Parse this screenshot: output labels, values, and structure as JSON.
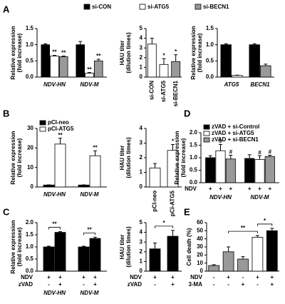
{
  "chart_data": [
    {
      "type": "bar",
      "panel": "A",
      "ylabel": [
        "Relative expression",
        "(fold increase)"
      ],
      "legend": "top",
      "italic_categories": true,
      "categories": [
        "NDV-HN",
        "NDV-M"
      ],
      "ylim": [
        0,
        1.5
      ],
      "yticks": [
        {
          "value": 0,
          "label": "0.0"
        },
        {
          "value": 0.5,
          "label": "0.5"
        },
        {
          "value": 1,
          "label": "1.0"
        },
        {
          "value": 1.5,
          "label": "1.5"
        }
      ],
      "series": [
        {
          "name": "si-CON",
          "color": "#000000",
          "values": [
            1.0,
            1.0
          ],
          "errors": [
            0.03,
            0.1
          ]
        },
        {
          "name": "si-ATG5",
          "color": "#ffffff",
          "values": [
            0.65,
            0.12
          ],
          "errors": [
            0.02,
            0.02
          ],
          "annotations": [
            "**",
            "**"
          ]
        },
        {
          "name": "si-BECN1",
          "color": "#999999",
          "values": [
            0.63,
            0.5
          ],
          "errors": [
            0.02,
            0.05
          ],
          "annotations": [
            "**",
            "**"
          ]
        }
      ]
    },
    {
      "type": "bar",
      "ylabel": [
        "HAU titer",
        "(dilution times)"
      ],
      "rotate_labels": true,
      "categories": [
        "si-CON",
        "si-ATG5",
        "si-BECN1"
      ],
      "ylim": [
        0,
        5
      ],
      "yticks": [
        0,
        1,
        2,
        3,
        4,
        5
      ],
      "series": [
        {
          "colors": [
            "#ffffff",
            "#ffffff",
            "#999999"
          ],
          "values": [
            3.4,
            1.3,
            1.6
          ],
          "errors": [
            0.6,
            0.6,
            0.7
          ],
          "annotations": [
            null,
            "*",
            "*"
          ]
        }
      ]
    },
    {
      "type": "bar",
      "ylabel": [
        "Relative expression",
        "(fold increase)"
      ],
      "italic_categories": true,
      "categories": [
        "ATG5",
        "BECN1"
      ],
      "ylim": [
        0,
        1.5
      ],
      "yticks": [
        {
          "value": 0,
          "label": "0.0"
        },
        {
          "value": 0.5,
          "label": "0.5"
        },
        {
          "value": 1,
          "label": "1.0"
        },
        {
          "value": 1.5,
          "label": "1.5"
        }
      ],
      "series": [
        {
          "color": "#000000",
          "values": [
            1.0,
            1.0
          ],
          "errors": [
            0.03,
            0.03
          ]
        },
        {
          "colors": [
            "#ffffff",
            "#999999"
          ],
          "values": [
            0.05,
            0.35
          ],
          "errors": [
            0.01,
            0.05
          ]
        }
      ]
    },
    {
      "type": "bar",
      "panel": "B",
      "ylabel": [
        "Relative expression",
        "(fold increase)"
      ],
      "legend": "upper left",
      "italic_categories": true,
      "categories": [
        "NDV-HN",
        "NDV-M"
      ],
      "ylim": [
        0,
        30
      ],
      "yticks": [
        0,
        10,
        20,
        30
      ],
      "series": [
        {
          "name": "pCI-neo",
          "color": "#000000",
          "values": [
            1.0,
            1.0
          ],
          "errors": [
            0.1,
            0.1
          ]
        },
        {
          "name": "pCI-ATG5",
          "color": "#ffffff",
          "values": [
            22,
            16
          ],
          "errors": [
            3,
            2.5
          ],
          "annotations": [
            "**",
            "**"
          ]
        }
      ]
    },
    {
      "type": "bar",
      "ylabel": [
        "HAU titer",
        "(dilution times)"
      ],
      "rotate_labels": true,
      "categories": [
        "pCI-neo",
        "pCI-ATG5"
      ],
      "ylim": [
        0,
        4
      ],
      "yticks": [
        0,
        1,
        2,
        3,
        4
      ],
      "series": [
        {
          "color": "#ffffff",
          "values": [
            1.3,
            2.5
          ],
          "errors": [
            0.3,
            0.4
          ],
          "annotations": [
            null,
            "*"
          ]
        }
      ]
    },
    {
      "type": "bar",
      "panel": "D",
      "ylabel": [
        "Relative expression",
        "(fold increase)"
      ],
      "legend": "upper left",
      "italic_categories": true,
      "categories": [
        "NDV-HN",
        "NDV-M"
      ],
      "ylim": [
        0,
        2
      ],
      "yticks": [
        {
          "value": 0,
          "label": "0.0"
        },
        {
          "value": 0.5,
          "label": "0.5"
        },
        {
          "value": 1,
          "label": "1.0"
        },
        {
          "value": 1.5,
          "label": "1.5"
        },
        {
          "value": 2,
          "label": "2.0"
        }
      ],
      "rows": [
        {
          "label": "NDV",
          "values": [
            "+",
            "+",
            "+",
            "+",
            "+",
            "+"
          ]
        }
      ],
      "series": [
        {
          "name": "zVAD + si-Control",
          "color": "#000000",
          "values": [
            1.0,
            0.97
          ],
          "errors": [
            0.08,
            0.15
          ]
        },
        {
          "name": "zVAD + si-ATG5",
          "color": "#ffffff",
          "values": [
            1.28,
            0.93
          ],
          "errors": [
            0.25,
            0.15
          ],
          "annotations": [
            "#",
            "#"
          ]
        },
        {
          "name": "zVAD + si-BECN1",
          "color": "#999999",
          "values": [
            0.95,
            1.05
          ],
          "errors": [
            0.15,
            0.05
          ],
          "annotations": [
            "#",
            "#"
          ]
        }
      ]
    },
    {
      "type": "bar",
      "panel": "C",
      "ylabel": [
        "Relative expression",
        "(fold increase)"
      ],
      "italic_categories": true,
      "categories": [
        "NDV-HN",
        "NDV-M"
      ],
      "ylim": [
        0,
        2
      ],
      "yticks": [
        {
          "value": 0,
          "label": "0.0"
        },
        {
          "value": 0.5,
          "label": "0.5"
        },
        {
          "value": 1,
          "label": "1.0"
        },
        {
          "value": 1.5,
          "label": "1.5"
        },
        {
          "value": 2,
          "label": "2.0"
        }
      ],
      "rows": [
        {
          "label": "NDV",
          "values": [
            "+",
            "+",
            "+",
            "+"
          ]
        },
        {
          "label": "zVAD",
          "values": [
            "-",
            "+",
            "-",
            "+"
          ]
        }
      ],
      "series": [
        {
          "color": "#000000",
          "values": [
            1.0,
            1.0
          ],
          "errors": [
            0.03,
            0.03
          ]
        },
        {
          "color": "#000000",
          "values": [
            1.6,
            1.35
          ],
          "errors": [
            0.03,
            0.05
          ],
          "annotations": [
            "**",
            "**"
          ]
        }
      ]
    },
    {
      "type": "bar",
      "ylabel": [
        "HAU titer",
        "(dilution times)"
      ],
      "categories": [
        null,
        null
      ],
      "ylim": [
        0,
        5
      ],
      "yticks": [
        0,
        1,
        2,
        3,
        4,
        5
      ],
      "rows": [
        {
          "label": "NDV",
          "values": [
            "+",
            "+"
          ]
        },
        {
          "label": "zVAD",
          "values": [
            "-",
            "+"
          ]
        }
      ],
      "series": [
        {
          "color": "#000000",
          "values": [
            2.3,
            3.6
          ],
          "errors": [
            0.6,
            0.6
          ],
          "annotations": [
            null,
            "*"
          ]
        }
      ]
    },
    {
      "type": "bar",
      "panel": "E",
      "ylabel": [
        "Cell death (%)"
      ],
      "categories": [
        null,
        null,
        null,
        null,
        null
      ],
      "ylim": [
        0,
        60
      ],
      "yticks": [
        0,
        10,
        20,
        30,
        40,
        50,
        60
      ],
      "rows": [
        {
          "label": "NDV",
          "values": [
            "-",
            "+",
            "-",
            "+",
            "+"
          ]
        },
        {
          "label": "3-MA",
          "values": [
            "-",
            "-",
            "+",
            "-",
            "+"
          ]
        }
      ],
      "series": [
        {
          "colors": [
            "#999999",
            "#999999",
            "#999999",
            "#ffffff",
            "#000000"
          ],
          "values": [
            7,
            24,
            15,
            42,
            50
          ],
          "errors": [
            1,
            6,
            3,
            2,
            3
          ],
          "annotations": [
            null,
            null,
            null,
            "**",
            "*"
          ]
        }
      ]
    }
  ]
}
